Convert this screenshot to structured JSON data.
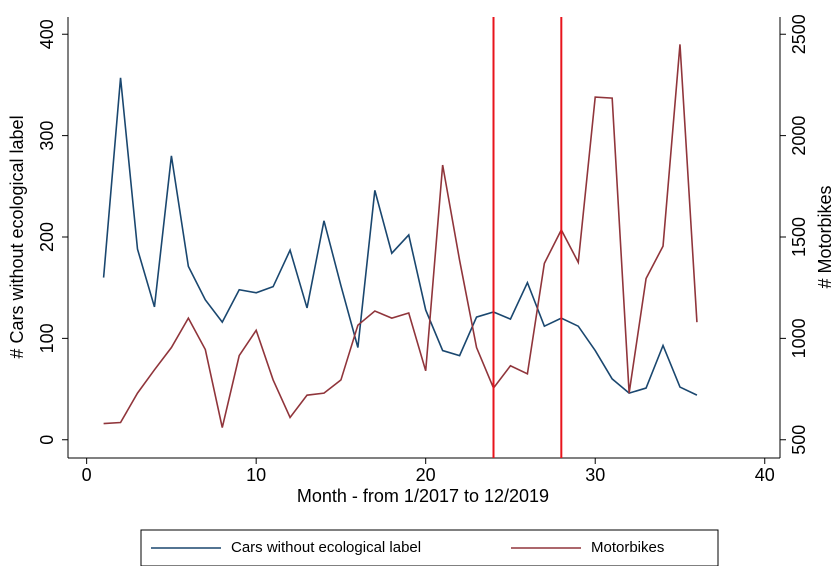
{
  "chart_data": {
    "type": "line",
    "x_label": "Month - from 1/2017 to 12/2019",
    "y_label": "# Cars without ecological label",
    "y2_label": "# Motorbikes",
    "x": [
      1,
      2,
      3,
      4,
      5,
      6,
      7,
      8,
      9,
      10,
      11,
      12,
      13,
      14,
      15,
      16,
      17,
      18,
      19,
      20,
      21,
      22,
      23,
      24,
      25,
      26,
      27,
      28,
      29,
      30,
      31,
      32,
      33,
      34,
      35,
      36
    ],
    "series": [
      {
        "name": "Cars without ecological label",
        "color": "#1a476f",
        "values": [
          160,
          357,
          188,
          131,
          280,
          171,
          138,
          116,
          148,
          145,
          151,
          187,
          130,
          216,
          152,
          91,
          246,
          184,
          202,
          128,
          88,
          83,
          121,
          126,
          119,
          155,
          112,
          120,
          112,
          88,
          60,
          46,
          51,
          93,
          52,
          44
        ]
      },
      {
        "name": "Motorbikes",
        "color": "#90353b",
        "axis": "y2",
        "values": [
          580,
          585,
          730,
          845,
          955,
          1100,
          945,
          560,
          915,
          1040,
          795,
          610,
          720,
          730,
          795,
          1065,
          1135,
          1100,
          1125,
          840,
          1855,
          1385,
          955,
          755,
          865,
          825,
          1370,
          1535,
          1375,
          2190,
          2185,
          730,
          1295,
          1455,
          2450,
          1080
        ]
      }
    ],
    "vlines": [
      24,
      28
    ],
    "vline_color": "#e8141c",
    "xlim": [
      -1.1,
      40.9
    ],
    "xticks": [
      0,
      10,
      20,
      30,
      40
    ],
    "ylim": [
      -18,
      417
    ],
    "yticks": [
      0,
      100,
      200,
      300,
      400
    ],
    "y2lim": [
      410,
      2585
    ],
    "y2ticks": [
      500,
      1000,
      1500,
      2000,
      2500
    ],
    "grid": false,
    "legend": "bottom"
  }
}
